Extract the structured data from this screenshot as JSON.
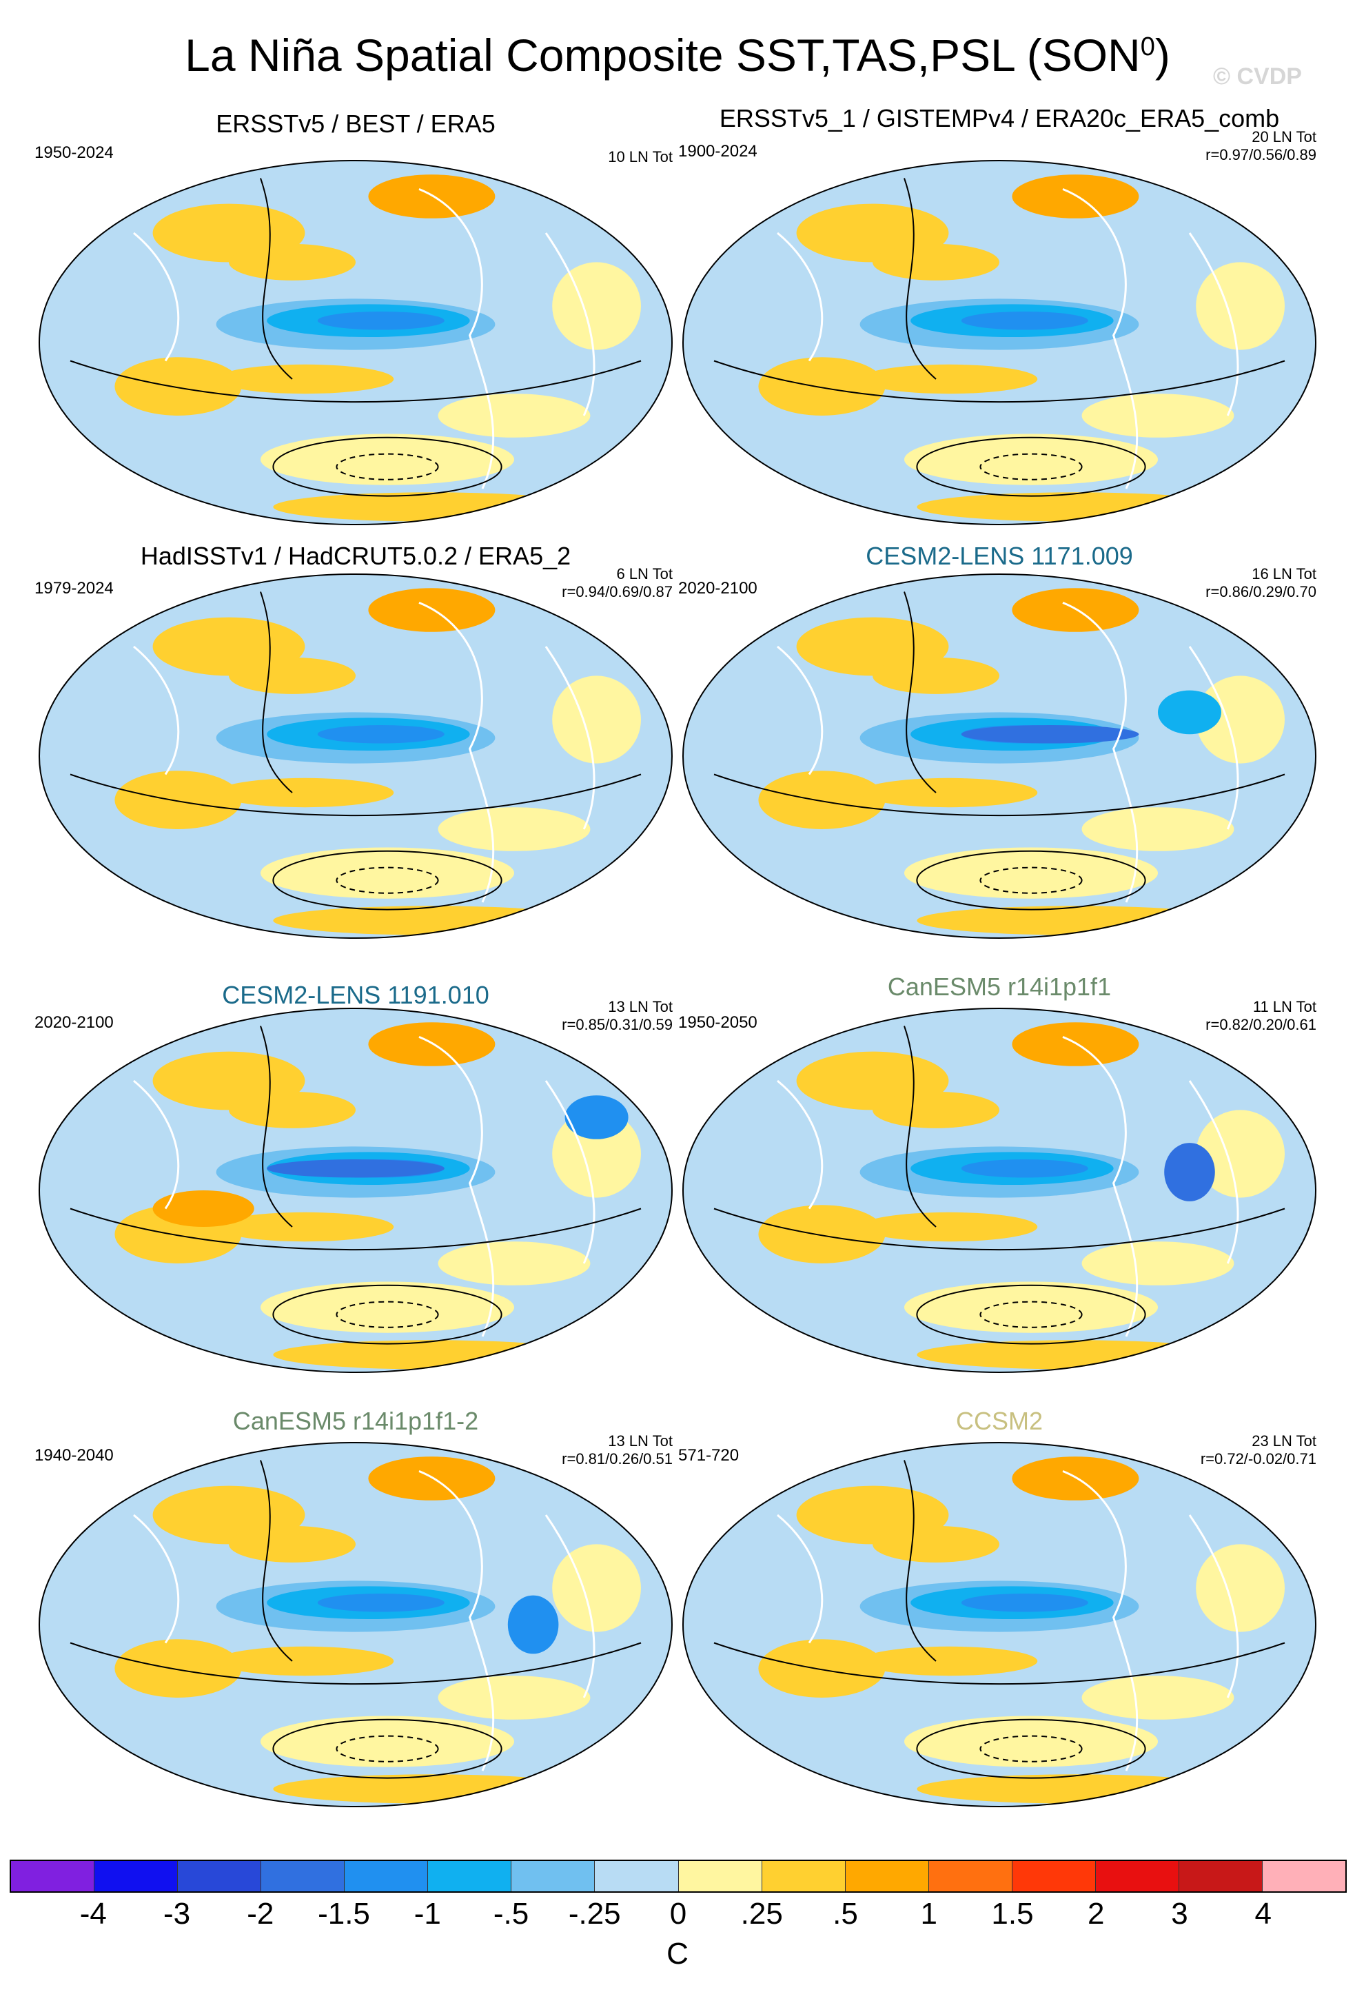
{
  "title": "La Niña Spatial Composite SST,TAS,PSL (SON",
  "title_sup": "0",
  "title_close": ")",
  "watermark": "© CVDP",
  "panels": [
    {
      "title": "ERSSTv5 / BEST / ERA5",
      "title_color": "#000000",
      "years": "1950-2024",
      "count": "10 LN Tot",
      "stats": ""
    },
    {
      "title": "ERSSTv5_1 / GISTEMPv4 / ERA20c_ERA5_comb",
      "title_color": "#000000",
      "years": "1900-2024",
      "count": "20 LN Tot",
      "stats": "r=0.97/0.56/0.89"
    },
    {
      "title": "HadISSTv1 / HadCRUT5.0.2 / ERA5_2",
      "title_color": "#000000",
      "years": "1979-2024",
      "count": "6 LN Tot",
      "stats": "r=0.94/0.69/0.87"
    },
    {
      "title": "CESM2-LENS 1171.009",
      "title_color": "#1a6a8a",
      "years": "2020-2100",
      "count": "16 LN Tot",
      "stats": "r=0.86/0.29/0.70"
    },
    {
      "title": "CESM2-LENS 1191.010",
      "title_color": "#1a6a8a",
      "years": "2020-2100",
      "count": "13 LN Tot",
      "stats": "r=0.85/0.31/0.59"
    },
    {
      "title": "CanESM5 r14i1p1f1",
      "title_color": "#6a8a6a",
      "years": "1950-2050",
      "count": "11 LN Tot",
      "stats": "r=0.82/0.20/0.61"
    },
    {
      "title": "CanESM5 r14i1p1f1-2",
      "title_color": "#6a8a6a",
      "years": "1940-2040",
      "count": "13 LN Tot",
      "stats": "r=0.81/0.26/0.51"
    },
    {
      "title": "CCSM2",
      "title_color": "#c8c080",
      "years": "571-720",
      "count": "23 LN Tot",
      "stats": "r=0.72/-0.02/0.71"
    }
  ],
  "colorbar": {
    "colors": [
      "#8020e0",
      "#1010f0",
      "#2848d8",
      "#3070e0",
      "#2090f0",
      "#10b0f0",
      "#70c0f0",
      "#b8dcf4",
      "#fff6a0",
      "#ffd030",
      "#ffa800",
      "#ff7010",
      "#ff3808",
      "#e81010",
      "#c81818",
      "#ffb0b8"
    ],
    "ticks": [
      "-4",
      "-3",
      "-2",
      "-1.5",
      "-1",
      "-.5",
      "-.25",
      "0",
      ".25",
      ".5",
      "1",
      "1.5",
      "2",
      "3",
      "4"
    ],
    "unit": "C"
  }
}
